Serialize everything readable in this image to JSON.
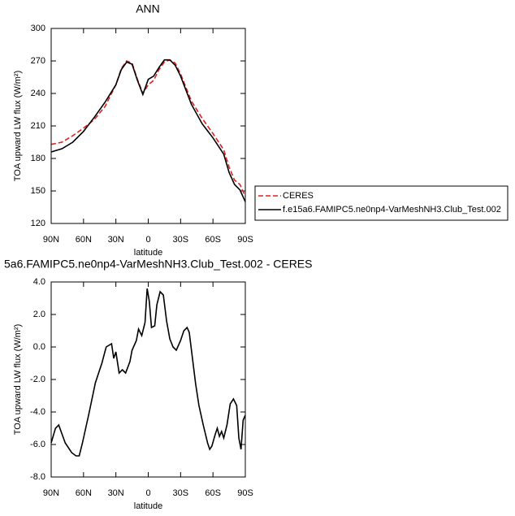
{
  "chart_data": [
    {
      "type": "line",
      "title": "ANN",
      "xlabel": "latitude",
      "ylabel": "TOA upward LW flux (W/m²)",
      "xlim": [
        90,
        -90
      ],
      "xticks": [
        {
          "value": 90,
          "label": "90N"
        },
        {
          "value": 60,
          "label": "60N"
        },
        {
          "value": 30,
          "label": "30N"
        },
        0,
        {
          "value": -30,
          "label": "30S"
        },
        {
          "value": -60,
          "label": "60S"
        },
        {
          "value": -90,
          "label": "90S"
        }
      ],
      "ylim": [
        120,
        300
      ],
      "yticks": [
        120,
        150,
        180,
        210,
        240,
        270,
        300
      ],
      "legend": "outside right",
      "x": [
        90,
        80,
        70,
        60,
        50,
        40,
        30,
        25,
        20,
        15,
        10,
        5,
        0,
        -5,
        -10,
        -15,
        -20,
        -25,
        -30,
        -40,
        -50,
        -60,
        -70,
        -75,
        -80,
        -85,
        -90
      ],
      "series": [
        {
          "name": "CERES",
          "color": "#e02020",
          "linestyle": "dashed",
          "values": [
            193,
            195,
            201,
            208,
            216,
            228,
            248,
            263,
            270,
            268,
            253,
            240,
            248,
            252,
            262,
            269,
            271,
            268,
            258,
            233,
            217,
            203,
            188,
            172,
            160,
            156,
            145
          ]
        },
        {
          "name": "f.e15a6.FAMIPC5.ne0np4-VarMeshNH3.Club_Test.002",
          "color": "#000000",
          "linestyle": "solid",
          "values": [
            186,
            189,
            195,
            205,
            218,
            232,
            248,
            262,
            269,
            267,
            252,
            239,
            253,
            256,
            264,
            271,
            271,
            266,
            256,
            230,
            212,
            199,
            184,
            167,
            156,
            151,
            140
          ]
        }
      ]
    },
    {
      "type": "line",
      "title": "5a6.FAMIPC5.ne0np4-VarMeshNH3.Club_Test.002 - CERES",
      "xlabel": "latitude",
      "ylabel": "TOA upward LW flux (W/m²)",
      "xlim": [
        90,
        -90
      ],
      "xticks": [
        {
          "value": 90,
          "label": "90N"
        },
        {
          "value": 60,
          "label": "60N"
        },
        {
          "value": 30,
          "label": "30N"
        },
        0,
        {
          "value": -30,
          "label": "30S"
        },
        {
          "value": -60,
          "label": "60S"
        },
        {
          "value": -90,
          "label": "90S"
        }
      ],
      "ylim": [
        -8,
        4
      ],
      "yticks": [
        {
          "value": -8,
          "label": "-8.0"
        },
        {
          "value": -6,
          "label": "-6.0"
        },
        {
          "value": -4,
          "label": "-4.0"
        },
        {
          "value": -2,
          "label": "-2.0"
        },
        {
          "value": 0,
          "label": "0.0"
        },
        {
          "value": 2,
          "label": "2.0"
        },
        {
          "value": 4,
          "label": "4.0"
        }
      ],
      "x": [
        90,
        86,
        83,
        77,
        71,
        67,
        64,
        61,
        55,
        49,
        43,
        39,
        34,
        32,
        30,
        27,
        24,
        21,
        17,
        15,
        11,
        9,
        6,
        3,
        1,
        -1,
        -3,
        -6,
        -8,
        -11,
        -14,
        -17,
        -20,
        -23,
        -26,
        -30,
        -33,
        -36,
        -38,
        -41,
        -44,
        -47,
        -51,
        -55,
        -57,
        -59,
        -62,
        -64,
        -66,
        -68,
        -70,
        -73,
        -76,
        -79,
        -82,
        -84,
        -86,
        -88,
        -90
      ],
      "series": [
        {
          "color": "#000000",
          "linestyle": "solid",
          "values": [
            -5.9,
            -5.0,
            -4.8,
            -5.9,
            -6.5,
            -6.7,
            -6.7,
            -5.9,
            -4.1,
            -2.2,
            -1.0,
            0.0,
            0.2,
            -0.7,
            -0.3,
            -1.6,
            -1.4,
            -1.6,
            -0.9,
            -0.2,
            0.4,
            1.1,
            0.7,
            1.5,
            3.6,
            2.8,
            1.2,
            1.3,
            2.6,
            3.4,
            3.2,
            1.6,
            0.5,
            0.0,
            -0.2,
            0.4,
            1.0,
            1.2,
            0.9,
            -0.7,
            -2.3,
            -3.6,
            -4.8,
            -5.9,
            -6.3,
            -6.1,
            -5.4,
            -5.0,
            -5.5,
            -5.2,
            -5.6,
            -4.8,
            -3.5,
            -3.2,
            -3.6,
            -5.6,
            -6.3,
            -4.5,
            -4.2
          ]
        }
      ]
    }
  ]
}
